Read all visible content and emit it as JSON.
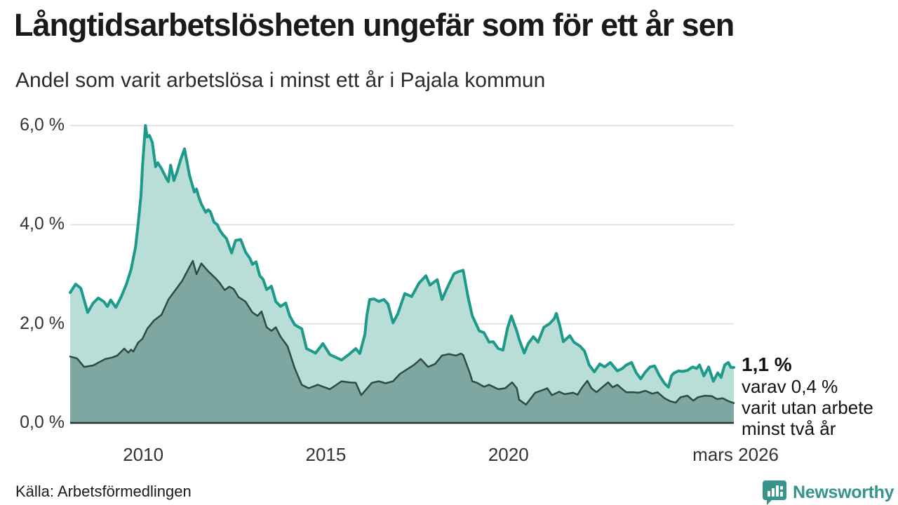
{
  "header": {
    "title": "Långtidsarbetslösheten ungefär som för ett år sen",
    "subtitle": "Andel som varit arbetslösa i minst ett år i Pajala kommun"
  },
  "annotation": {
    "value": "1,1 %",
    "detail1": "varav 0,4 %",
    "detail2": "varit utan arbete",
    "detail3": "minst två år"
  },
  "footer": {
    "source": "Källa: Arbetsförmedlingen",
    "logo_text": "Newsworthy"
  },
  "colors": {
    "line_1yr": "#1d9a8a",
    "fill_1yr": "#b9ded7",
    "line_2yr": "#2e4a45",
    "fill_2yr": "#7da7a0",
    "gridline": "#dcdcdc",
    "baseline": "#263430",
    "text": "#1a1a1a",
    "text_secondary": "#333333",
    "logo_teal": "#36948b"
  },
  "chart_data": {
    "type": "area",
    "title": "Långtidsarbetslösheten ungefär som för ett år sen",
    "subtitle": "Andel som varit arbetslösa i minst ett år i Pajala kommun",
    "unit": "percent",
    "x_range": [
      2008.0,
      2026.17
    ],
    "ylim": [
      0,
      6.3
    ],
    "grid": true,
    "legend": "none",
    "y_ticks": [
      {
        "label": "6,0 %",
        "value": 6
      },
      {
        "label": "4,0 %",
        "value": 4
      },
      {
        "label": "2,0 %",
        "value": 2
      },
      {
        "label": "0,0 %",
        "value": 0
      }
    ],
    "x_ticks": [
      {
        "label": "2010",
        "value": 2010
      },
      {
        "label": "2015",
        "value": 2015
      },
      {
        "label": "2020",
        "value": 2020
      }
    ],
    "x_end_label": "mars 2026",
    "end_values": {
      "share_1yr": "1,1 %",
      "share_2yr": "0,4 %"
    },
    "series": [
      {
        "name": "Andel arbetslösa minst ett år",
        "stroke": "#1d9a8a",
        "fill": "#b9ded7",
        "stroke_width": 4,
        "points": [
          [
            2008.0,
            2.63
          ],
          [
            2008.15,
            2.8
          ],
          [
            2008.29,
            2.72
          ],
          [
            2008.48,
            2.23
          ],
          [
            2008.63,
            2.42
          ],
          [
            2008.77,
            2.52
          ],
          [
            2008.92,
            2.45
          ],
          [
            2009.02,
            2.35
          ],
          [
            2009.11,
            2.48
          ],
          [
            2009.25,
            2.33
          ],
          [
            2009.4,
            2.55
          ],
          [
            2009.54,
            2.8
          ],
          [
            2009.67,
            3.1
          ],
          [
            2009.79,
            3.55
          ],
          [
            2009.86,
            4.0
          ],
          [
            2009.94,
            4.6
          ],
          [
            2009.98,
            5.18
          ],
          [
            2010.06,
            6.0
          ],
          [
            2010.11,
            5.77
          ],
          [
            2010.17,
            5.8
          ],
          [
            2010.25,
            5.66
          ],
          [
            2010.34,
            5.17
          ],
          [
            2010.4,
            5.25
          ],
          [
            2010.5,
            5.13
          ],
          [
            2010.63,
            4.94
          ],
          [
            2010.69,
            4.87
          ],
          [
            2010.75,
            5.2
          ],
          [
            2010.84,
            4.89
          ],
          [
            2010.92,
            5.05
          ],
          [
            2011.02,
            5.3
          ],
          [
            2011.13,
            5.53
          ],
          [
            2011.27,
            4.99
          ],
          [
            2011.4,
            4.66
          ],
          [
            2011.46,
            4.72
          ],
          [
            2011.52,
            4.56
          ],
          [
            2011.59,
            4.42
          ],
          [
            2011.71,
            4.25
          ],
          [
            2011.78,
            4.3
          ],
          [
            2011.84,
            4.26
          ],
          [
            2011.94,
            4.05
          ],
          [
            2012.03,
            4.0
          ],
          [
            2012.09,
            3.9
          ],
          [
            2012.17,
            3.81
          ],
          [
            2012.28,
            3.72
          ],
          [
            2012.42,
            3.43
          ],
          [
            2012.53,
            3.68
          ],
          [
            2012.67,
            3.7
          ],
          [
            2012.8,
            3.45
          ],
          [
            2012.92,
            3.32
          ],
          [
            2012.99,
            3.2
          ],
          [
            2013.09,
            3.25
          ],
          [
            2013.19,
            2.97
          ],
          [
            2013.28,
            2.9
          ],
          [
            2013.38,
            2.69
          ],
          [
            2013.51,
            2.76
          ],
          [
            2013.63,
            2.45
          ],
          [
            2013.76,
            2.35
          ],
          [
            2013.9,
            2.42
          ],
          [
            2014.01,
            2.16
          ],
          [
            2014.15,
            1.98
          ],
          [
            2014.34,
            1.9
          ],
          [
            2014.47,
            1.5
          ],
          [
            2014.72,
            1.41
          ],
          [
            2014.92,
            1.6
          ],
          [
            2015.11,
            1.38
          ],
          [
            2015.43,
            1.27
          ],
          [
            2015.63,
            1.38
          ],
          [
            2015.82,
            1.5
          ],
          [
            2015.93,
            1.4
          ],
          [
            2016.07,
            1.79
          ],
          [
            2016.12,
            2.16
          ],
          [
            2016.2,
            2.49
          ],
          [
            2016.32,
            2.5
          ],
          [
            2016.45,
            2.45
          ],
          [
            2016.59,
            2.49
          ],
          [
            2016.7,
            2.4
          ],
          [
            2016.84,
            2.02
          ],
          [
            2016.97,
            2.2
          ],
          [
            2017.16,
            2.61
          ],
          [
            2017.35,
            2.55
          ],
          [
            2017.55,
            2.82
          ],
          [
            2017.74,
            2.97
          ],
          [
            2017.85,
            2.78
          ],
          [
            2018.05,
            2.89
          ],
          [
            2018.18,
            2.49
          ],
          [
            2018.37,
            2.8
          ],
          [
            2018.51,
            3.01
          ],
          [
            2018.62,
            3.05
          ],
          [
            2018.76,
            3.08
          ],
          [
            2018.89,
            2.55
          ],
          [
            2019.01,
            2.16
          ],
          [
            2019.2,
            1.86
          ],
          [
            2019.33,
            1.82
          ],
          [
            2019.47,
            1.63
          ],
          [
            2019.58,
            1.64
          ],
          [
            2019.72,
            1.5
          ],
          [
            2019.85,
            1.47
          ],
          [
            2019.97,
            1.9
          ],
          [
            2020.08,
            2.16
          ],
          [
            2020.23,
            1.85
          ],
          [
            2020.29,
            1.69
          ],
          [
            2020.43,
            1.41
          ],
          [
            2020.54,
            1.6
          ],
          [
            2020.68,
            1.74
          ],
          [
            2020.81,
            1.63
          ],
          [
            2020.97,
            1.93
          ],
          [
            2021.12,
            2.0
          ],
          [
            2021.25,
            2.1
          ],
          [
            2021.31,
            2.21
          ],
          [
            2021.41,
            1.95
          ],
          [
            2021.5,
            1.64
          ],
          [
            2021.68,
            1.76
          ],
          [
            2021.79,
            1.63
          ],
          [
            2021.96,
            1.55
          ],
          [
            2022.08,
            1.45
          ],
          [
            2022.21,
            1.17
          ],
          [
            2022.35,
            1.03
          ],
          [
            2022.5,
            1.19
          ],
          [
            2022.63,
            1.13
          ],
          [
            2022.79,
            1.22
          ],
          [
            2022.98,
            1.05
          ],
          [
            2023.12,
            1.1
          ],
          [
            2023.23,
            1.17
          ],
          [
            2023.37,
            1.22
          ],
          [
            2023.5,
            1.01
          ],
          [
            2023.62,
            0.89
          ],
          [
            2023.75,
            1.03
          ],
          [
            2023.88,
            1.13
          ],
          [
            2024.0,
            1.15
          ],
          [
            2024.13,
            0.96
          ],
          [
            2024.27,
            0.8
          ],
          [
            2024.38,
            0.72
          ],
          [
            2024.46,
            0.95
          ],
          [
            2024.52,
            1.0
          ],
          [
            2024.65,
            1.05
          ],
          [
            2024.77,
            1.04
          ],
          [
            2024.9,
            1.06
          ],
          [
            2025.04,
            1.13
          ],
          [
            2025.15,
            1.1
          ],
          [
            2025.23,
            1.17
          ],
          [
            2025.35,
            0.95
          ],
          [
            2025.48,
            1.13
          ],
          [
            2025.61,
            0.84
          ],
          [
            2025.73,
            1.01
          ],
          [
            2025.82,
            0.92
          ],
          [
            2025.92,
            1.17
          ],
          [
            2026.02,
            1.22
          ],
          [
            2026.09,
            1.12
          ],
          [
            2026.17,
            1.12
          ]
        ]
      },
      {
        "name": "Andel arbetslösa minst två år",
        "stroke": "#2e4a45",
        "fill": "#7da7a0",
        "stroke_width": 2.5,
        "points": [
          [
            2008.0,
            1.34
          ],
          [
            2008.19,
            1.3
          ],
          [
            2008.38,
            1.13
          ],
          [
            2008.63,
            1.16
          ],
          [
            2008.96,
            1.29
          ],
          [
            2009.15,
            1.32
          ],
          [
            2009.29,
            1.36
          ],
          [
            2009.48,
            1.5
          ],
          [
            2009.59,
            1.42
          ],
          [
            2009.67,
            1.48
          ],
          [
            2009.73,
            1.44
          ],
          [
            2009.86,
            1.62
          ],
          [
            2009.98,
            1.7
          ],
          [
            2010.11,
            1.9
          ],
          [
            2010.3,
            2.07
          ],
          [
            2010.5,
            2.18
          ],
          [
            2010.69,
            2.49
          ],
          [
            2010.88,
            2.68
          ],
          [
            2011.07,
            2.87
          ],
          [
            2011.27,
            3.15
          ],
          [
            2011.36,
            3.27
          ],
          [
            2011.46,
            3.0
          ],
          [
            2011.59,
            3.22
          ],
          [
            2011.78,
            3.06
          ],
          [
            2011.98,
            2.92
          ],
          [
            2012.09,
            2.83
          ],
          [
            2012.23,
            2.68
          ],
          [
            2012.36,
            2.75
          ],
          [
            2012.48,
            2.7
          ],
          [
            2012.61,
            2.54
          ],
          [
            2012.8,
            2.45
          ],
          [
            2012.99,
            2.23
          ],
          [
            2013.13,
            2.16
          ],
          [
            2013.24,
            2.25
          ],
          [
            2013.38,
            1.93
          ],
          [
            2013.51,
            1.86
          ],
          [
            2013.63,
            1.93
          ],
          [
            2013.76,
            1.74
          ],
          [
            2013.95,
            1.55
          ],
          [
            2014.15,
            1.1
          ],
          [
            2014.34,
            0.77
          ],
          [
            2014.53,
            0.7
          ],
          [
            2014.78,
            0.77
          ],
          [
            2015.11,
            0.68
          ],
          [
            2015.43,
            0.84
          ],
          [
            2015.63,
            0.82
          ],
          [
            2015.82,
            0.81
          ],
          [
            2015.97,
            0.56
          ],
          [
            2016.26,
            0.81
          ],
          [
            2016.45,
            0.84
          ],
          [
            2016.64,
            0.8
          ],
          [
            2016.84,
            0.84
          ],
          [
            2017.03,
            0.99
          ],
          [
            2017.22,
            1.08
          ],
          [
            2017.41,
            1.17
          ],
          [
            2017.6,
            1.29
          ],
          [
            2017.8,
            1.13
          ],
          [
            2017.99,
            1.19
          ],
          [
            2018.18,
            1.36
          ],
          [
            2018.37,
            1.39
          ],
          [
            2018.56,
            1.36
          ],
          [
            2018.7,
            1.4
          ],
          [
            2018.76,
            1.37
          ],
          [
            2018.95,
            0.99
          ],
          [
            2019.01,
            0.84
          ],
          [
            2019.14,
            0.81
          ],
          [
            2019.33,
            0.73
          ],
          [
            2019.47,
            0.77
          ],
          [
            2019.72,
            0.68
          ],
          [
            2019.91,
            0.7
          ],
          [
            2020.1,
            0.82
          ],
          [
            2020.23,
            0.7
          ],
          [
            2020.29,
            0.47
          ],
          [
            2020.48,
            0.37
          ],
          [
            2020.73,
            0.61
          ],
          [
            2021.0,
            0.68
          ],
          [
            2021.06,
            0.7
          ],
          [
            2021.19,
            0.56
          ],
          [
            2021.39,
            0.63
          ],
          [
            2021.54,
            0.58
          ],
          [
            2021.77,
            0.61
          ],
          [
            2021.89,
            0.57
          ],
          [
            2022.02,
            0.72
          ],
          [
            2022.16,
            0.85
          ],
          [
            2022.27,
            0.7
          ],
          [
            2022.41,
            0.62
          ],
          [
            2022.6,
            0.74
          ],
          [
            2022.73,
            0.82
          ],
          [
            2022.85,
            0.72
          ],
          [
            2022.98,
            0.77
          ],
          [
            2023.12,
            0.68
          ],
          [
            2023.23,
            0.62
          ],
          [
            2023.42,
            0.62
          ],
          [
            2023.56,
            0.61
          ],
          [
            2023.75,
            0.65
          ],
          [
            2023.94,
            0.59
          ],
          [
            2024.08,
            0.62
          ],
          [
            2024.27,
            0.5
          ],
          [
            2024.42,
            0.44
          ],
          [
            2024.58,
            0.41
          ],
          [
            2024.71,
            0.52
          ],
          [
            2024.9,
            0.55
          ],
          [
            2025.06,
            0.45
          ],
          [
            2025.19,
            0.52
          ],
          [
            2025.38,
            0.55
          ],
          [
            2025.57,
            0.54
          ],
          [
            2025.71,
            0.48
          ],
          [
            2025.86,
            0.5
          ],
          [
            2026.02,
            0.44
          ],
          [
            2026.17,
            0.4
          ]
        ]
      }
    ]
  }
}
